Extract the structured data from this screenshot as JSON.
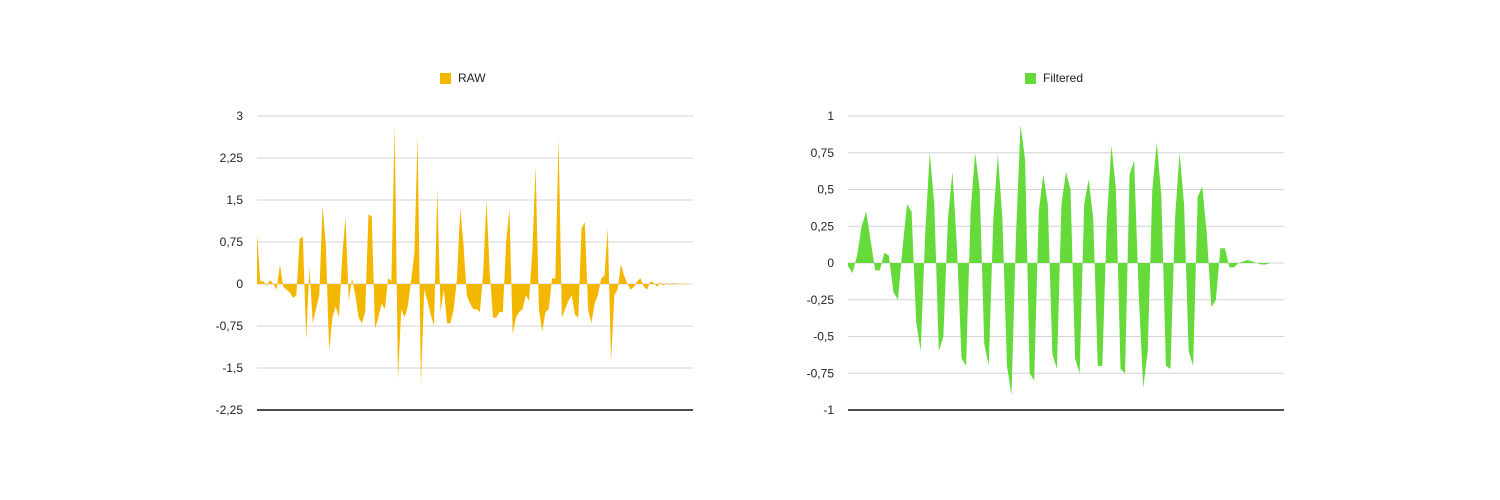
{
  "chart_data": [
    {
      "type": "area",
      "legend": "RAW",
      "color": "#F4B700",
      "yticks": [
        "3",
        "2,25",
        "1,5",
        "0,75",
        "0",
        "-0,75",
        "-1,5",
        "-2,25"
      ],
      "ylim": [
        -2.25,
        3
      ],
      "grid": true,
      "legend_position": "top",
      "values": [
        0.9,
        0.05,
        0.05,
        -0.03,
        0.07,
        0.0,
        -0.1,
        0.35,
        -0.05,
        -0.1,
        -0.15,
        -0.25,
        -0.2,
        0.8,
        0.85,
        -1.0,
        0.3,
        -0.7,
        -0.45,
        -0.2,
        1.4,
        0.7,
        -1.2,
        -0.6,
        -0.4,
        -0.6,
        0.5,
        1.2,
        -0.3,
        0.1,
        -0.2,
        -0.6,
        -0.7,
        -0.5,
        1.25,
        1.2,
        -0.8,
        -0.6,
        -0.35,
        -0.45,
        0.1,
        0.05,
        2.85,
        -1.7,
        -0.45,
        -0.6,
        -0.4,
        0.05,
        0.55,
        2.65,
        -1.8,
        -0.1,
        -0.3,
        -0.55,
        -0.75,
        1.7,
        -0.5,
        -0.1,
        -0.7,
        -0.7,
        -0.45,
        0.1,
        1.35,
        0.7,
        -0.2,
        -0.35,
        -0.45,
        -0.45,
        -0.5,
        0.2,
        1.5,
        0.2,
        -0.6,
        -0.6,
        -0.5,
        -0.5,
        0.75,
        1.35,
        -0.9,
        -0.6,
        -0.5,
        -0.45,
        -0.2,
        -0.3,
        0.6,
        2.1,
        -0.45,
        -0.85,
        -0.5,
        -0.45,
        0.1,
        0.1,
        2.6,
        -0.6,
        -0.45,
        -0.3,
        -0.2,
        -0.55,
        -0.6,
        1.0,
        1.1,
        -0.45,
        -0.7,
        -0.35,
        -0.2,
        0.1,
        0.15,
        1.0,
        -1.4,
        -0.2,
        -0.1,
        0.35,
        0.15,
        0.0,
        -0.1,
        -0.05,
        0.05,
        0.1,
        -0.05,
        -0.1,
        0.05,
        0.02,
        -0.05,
        0.03,
        -0.03,
        0.02,
        -0.02,
        0.02,
        -0.01,
        0.01,
        0.01,
        -0.01,
        0.0,
        0.0
      ]
    },
    {
      "type": "area",
      "legend": "Filtered",
      "color": "#66D93B",
      "yticks": [
        "1",
        "0,75",
        "0,5",
        "0,25",
        "0",
        "-0,25",
        "-0,5",
        "-0,75",
        "-1"
      ],
      "ylim": [
        -1,
        1
      ],
      "grid": true,
      "legend_position": "top",
      "values": [
        -0.02,
        -0.07,
        0.05,
        0.25,
        0.35,
        0.15,
        -0.05,
        -0.05,
        0.07,
        0.05,
        -0.2,
        -0.25,
        0.1,
        0.4,
        0.35,
        -0.4,
        -0.6,
        0.2,
        0.75,
        0.4,
        -0.6,
        -0.5,
        0.3,
        0.62,
        0.1,
        -0.65,
        -0.7,
        0.35,
        0.75,
        0.5,
        -0.55,
        -0.7,
        0.3,
        0.74,
        0.3,
        -0.7,
        -0.9,
        0.2,
        0.94,
        0.7,
        -0.75,
        -0.8,
        0.35,
        0.6,
        0.4,
        -0.62,
        -0.72,
        0.4,
        0.62,
        0.5,
        -0.65,
        -0.75,
        0.4,
        0.57,
        0.3,
        -0.7,
        -0.7,
        0.3,
        0.8,
        0.5,
        -0.72,
        -0.75,
        0.6,
        0.7,
        -0.2,
        -0.85,
        -0.6,
        0.5,
        0.82,
        0.45,
        -0.7,
        -0.72,
        0.3,
        0.75,
        0.4,
        -0.6,
        -0.7,
        0.45,
        0.52,
        0.2,
        -0.3,
        -0.25,
        0.1,
        0.1,
        -0.03,
        -0.03,
        0.0,
        0.01,
        0.02,
        0.01,
        0.0,
        -0.01,
        -0.01,
        0.0,
        0.0,
        0.0,
        0.0
      ]
    }
  ]
}
